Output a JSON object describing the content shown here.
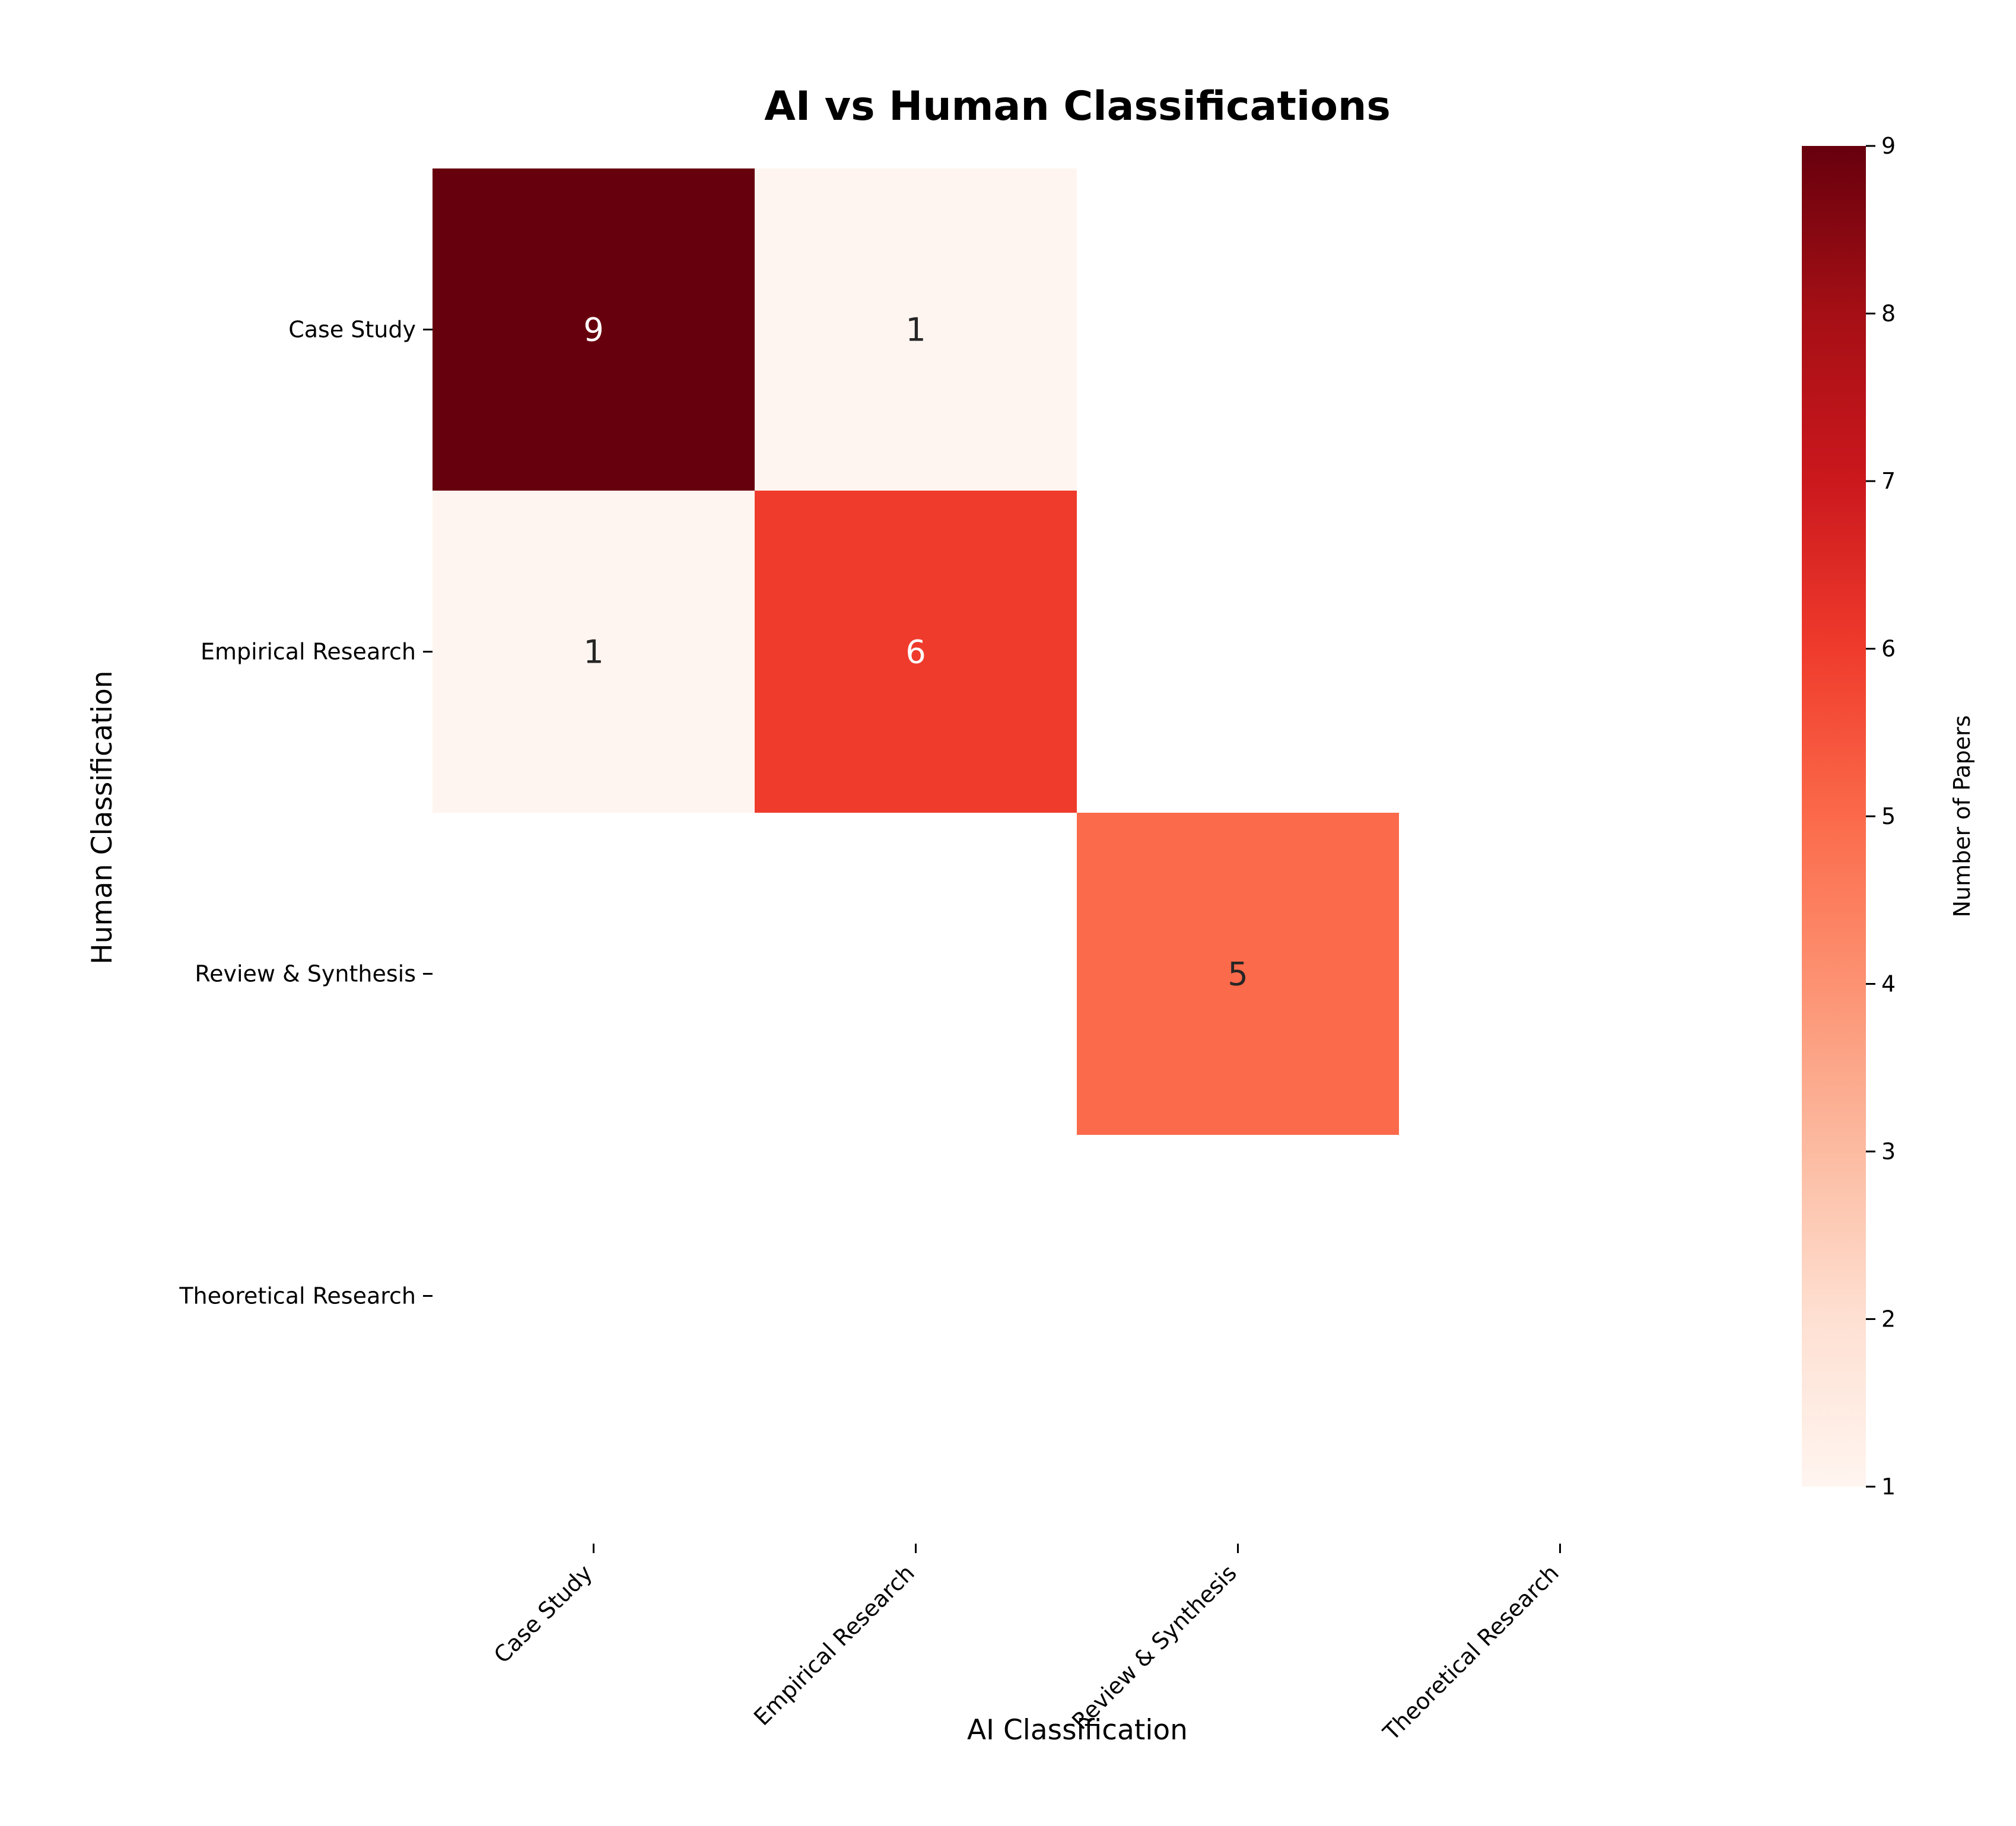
{
  "chart_data": {
    "type": "heatmap",
    "title": "AI vs Human Classifications",
    "xlabel": "AI Classification",
    "ylabel": "Human Classification",
    "x_categories": [
      "Case Study",
      "Empirical Research",
      "Review & Synthesis",
      "Theoretical Research"
    ],
    "y_categories": [
      "Case Study",
      "Empirical Research",
      "Review & Synthesis",
      "Theoretical Research"
    ],
    "values": [
      [
        9,
        1,
        null,
        null
      ],
      [
        1,
        6,
        null,
        null
      ],
      [
        null,
        null,
        5,
        null
      ],
      [
        null,
        null,
        null,
        null
      ]
    ],
    "colorbar": {
      "label": "Number of Papers",
      "range": [
        1,
        9
      ],
      "ticks": [
        "1",
        "2",
        "3",
        "4",
        "5",
        "6",
        "7",
        "8",
        "9"
      ],
      "colormap": "Reds",
      "low_color": "#fff5f0",
      "high_color": "#67000d"
    },
    "empty_cells_rendered": "blank",
    "grid": false
  }
}
